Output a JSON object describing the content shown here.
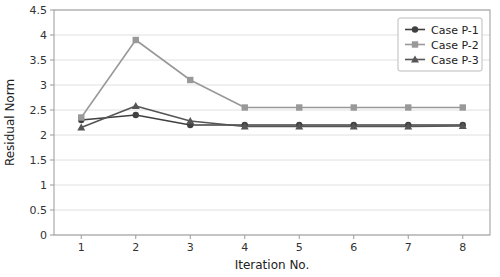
{
  "chart_data": {
    "type": "line",
    "x_label": "Iteration No.",
    "y_label": "Residual Norm",
    "x": [
      1,
      2,
      3,
      4,
      5,
      6,
      7,
      8
    ],
    "series": [
      {
        "name": "Case P-1",
        "color": "#404040",
        "marker": "circle",
        "values": [
          2.3,
          2.4,
          2.2,
          2.2,
          2.2,
          2.2,
          2.2,
          2.2
        ]
      },
      {
        "name": "Case P-2",
        "color": "#999999",
        "marker": "square",
        "values": [
          2.35,
          3.9,
          3.1,
          2.55,
          2.55,
          2.55,
          2.55,
          2.55
        ]
      },
      {
        "name": "Case P-3",
        "color": "#555555",
        "marker": "triangle",
        "values": [
          2.15,
          2.58,
          2.28,
          2.17,
          2.17,
          2.17,
          2.17,
          2.18
        ]
      }
    ],
    "xlim": [
      0.5,
      8.5
    ],
    "ylim": [
      0,
      4.5
    ],
    "xticks": [
      1,
      2,
      3,
      4,
      5,
      6,
      7,
      8
    ],
    "yticks": [
      0,
      0.5,
      1,
      1.5,
      2,
      2.5,
      3,
      3.5,
      4,
      4.5
    ],
    "grid": true,
    "legend": "upper right"
  }
}
